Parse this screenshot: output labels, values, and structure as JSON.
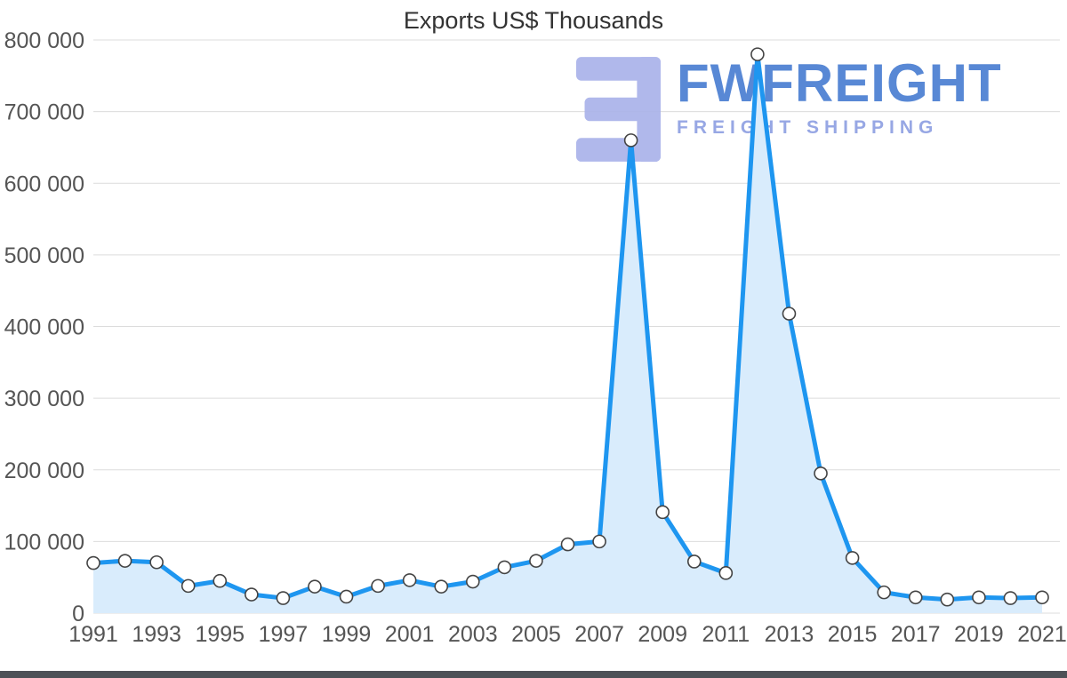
{
  "watermark": {
    "brand": "FWFREIGHT",
    "tagline": "FREIGHT SHIPPING",
    "brand_color": "#4a7ed2",
    "tagline_color": "#8fa0e2",
    "logo_color": "#aab3ea"
  },
  "chart_data": {
    "type": "area",
    "title": "Exports US$ Thousands",
    "x": [
      1991,
      1992,
      1993,
      1994,
      1995,
      1996,
      1997,
      1998,
      1999,
      2000,
      2001,
      2002,
      2003,
      2004,
      2005,
      2006,
      2007,
      2008,
      2009,
      2010,
      2011,
      2012,
      2013,
      2014,
      2015,
      2016,
      2017,
      2018,
      2019,
      2020,
      2021
    ],
    "values": [
      70000,
      73000,
      71000,
      38000,
      45000,
      26000,
      21000,
      37000,
      23000,
      38000,
      46000,
      37000,
      44000,
      64000,
      73000,
      96000,
      100000,
      660000,
      141000,
      72000,
      56000,
      780000,
      418000,
      195000,
      77000,
      29000,
      22000,
      19000,
      22000,
      21000,
      22000
    ],
    "xlabel": "",
    "ylabel": "",
    "ylim": [
      0,
      800000
    ],
    "y_tick_step": 100000,
    "x_label_every": 2,
    "grid": true,
    "legend": "none",
    "line_color": "#1e96f0",
    "fill_color": "#d9ecfc",
    "marker_fill": "#ffffff",
    "marker_stroke": "#444444",
    "grid_color": "#dcdcdc"
  }
}
